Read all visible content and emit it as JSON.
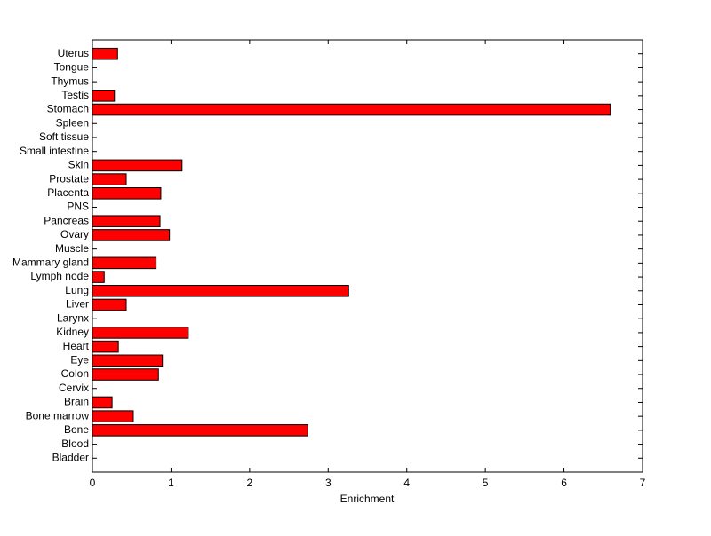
{
  "chart_data": {
    "type": "barh",
    "xlabel": "Enrichment",
    "categories": [
      "Bladder",
      "Blood",
      "Bone",
      "Bone marrow",
      "Brain",
      "Cervix",
      "Colon",
      "Eye",
      "Heart",
      "Kidney",
      "Larynx",
      "Liver",
      "Lung",
      "Lymph node",
      "Mammary gland",
      "Muscle",
      "Ovary",
      "Pancreas",
      "PNS",
      "Placenta",
      "Prostate",
      "Skin",
      "Small intestine",
      "Soft tissue",
      "Spleen",
      "Stomach",
      "Testis",
      "Thymus",
      "Tongue",
      "Uterus"
    ],
    "values": [
      0,
      0,
      2.74,
      0.52,
      0.25,
      0,
      0.84,
      0.89,
      0.33,
      1.22,
      0,
      0.43,
      3.26,
      0.15,
      0.81,
      0,
      0.98,
      0.86,
      0,
      0.87,
      0.43,
      1.14,
      0,
      0,
      0,
      6.59,
      0.28,
      0,
      0,
      0.32
    ],
    "color": "#ff0000",
    "xlim": [
      0,
      7
    ],
    "xticks": [
      0,
      1,
      2,
      3,
      4,
      5,
      6,
      7
    ]
  }
}
